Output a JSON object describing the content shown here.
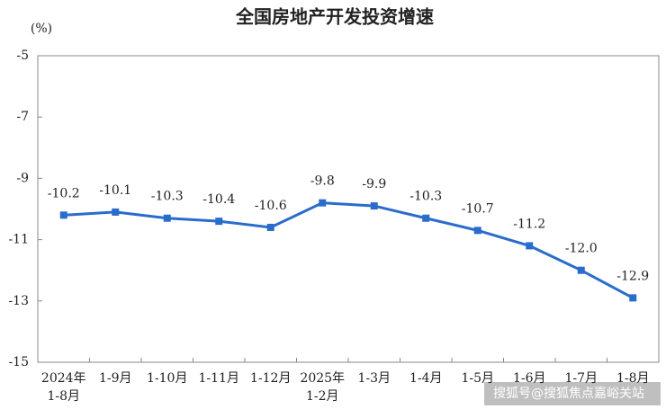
{
  "chart_data": {
    "type": "line",
    "title": "全国房地产开发投资增速",
    "y_label": "(%)",
    "categories": [
      "2024年\n1-8月",
      "1-9月",
      "1-10月",
      "1-11月",
      "1-12月",
      "2025年\n1-2月",
      "1-3月",
      "1-4月",
      "1-5月",
      "1-6月",
      "1-7月",
      "1-8月"
    ],
    "series": [
      {
        "name": "全国房地产开发投资增速",
        "color": "#2a6ccc",
        "values": [
          -10.2,
          -10.1,
          -10.3,
          -10.4,
          -10.6,
          -9.8,
          -9.9,
          -10.3,
          -10.7,
          -11.2,
          -12.0,
          -12.9
        ],
        "value_labels": [
          "-10.2",
          "-10.1",
          "-10.3",
          "-10.4",
          "-10.6",
          "-9.8",
          "-9.9",
          "-10.3",
          "-10.7",
          "-11.2",
          "-12.0",
          "-12.9"
        ]
      }
    ],
    "ylim": [
      -15,
      -5
    ],
    "yticks": [
      -5,
      -7,
      -9,
      -11,
      -13,
      -15
    ],
    "grid": false,
    "watermark": "搜狐号@搜狐焦点嘉峪关站"
  }
}
